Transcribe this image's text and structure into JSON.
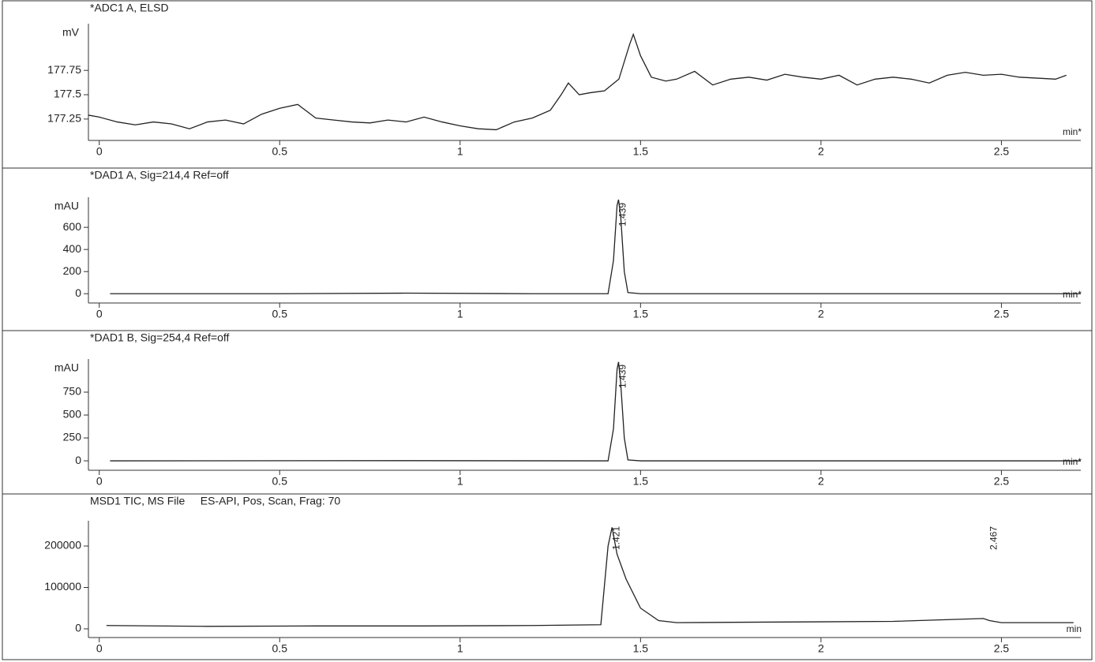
{
  "chart_data": [
    {
      "type": "line",
      "title": "*ADC1 A, ELSD",
      "y_unit": "mV",
      "x_label": "min*",
      "color": "#222222",
      "xlim": [
        -0.03,
        2.72
      ],
      "ylim": [
        177.03,
        178.23
      ],
      "xticks": [
        0,
        0.5,
        1,
        1.5,
        2,
        2.5
      ],
      "yticks": [
        177.25,
        177.5,
        177.75
      ],
      "x": [
        -0.03,
        0,
        0.05,
        0.1,
        0.15,
        0.2,
        0.25,
        0.3,
        0.35,
        0.4,
        0.45,
        0.5,
        0.55,
        0.6,
        0.65,
        0.7,
        0.75,
        0.8,
        0.85,
        0.9,
        0.95,
        1.0,
        1.05,
        1.1,
        1.15,
        1.2,
        1.25,
        1.28,
        1.3,
        1.33,
        1.36,
        1.4,
        1.44,
        1.47,
        1.48,
        1.5,
        1.53,
        1.57,
        1.6,
        1.65,
        1.7,
        1.75,
        1.8,
        1.85,
        1.9,
        1.95,
        2.0,
        2.05,
        2.1,
        2.15,
        2.2,
        2.25,
        2.3,
        2.35,
        2.4,
        2.45,
        2.5,
        2.55,
        2.6,
        2.65,
        2.68
      ],
      "values": [
        177.29,
        177.27,
        177.22,
        177.19,
        177.22,
        177.2,
        177.15,
        177.22,
        177.24,
        177.2,
        177.3,
        177.36,
        177.4,
        177.26,
        177.24,
        177.22,
        177.21,
        177.24,
        177.22,
        177.27,
        177.22,
        177.18,
        177.15,
        177.14,
        177.22,
        177.26,
        177.34,
        177.5,
        177.62,
        177.5,
        177.52,
        177.54,
        177.66,
        178.02,
        178.12,
        177.9,
        177.68,
        177.64,
        177.66,
        177.74,
        177.6,
        177.66,
        177.68,
        177.65,
        177.71,
        177.68,
        177.66,
        177.7,
        177.6,
        177.66,
        177.68,
        177.66,
        177.62,
        177.7,
        177.73,
        177.7,
        177.71,
        177.68,
        177.67,
        177.66,
        177.7
      ]
    },
    {
      "type": "line",
      "title": "*DAD1 A, Sig=214,4 Ref=off",
      "y_unit": "mAU",
      "x_label": "min*",
      "color": "#222222",
      "xlim": [
        -0.03,
        2.72
      ],
      "ylim": [
        -84,
        872
      ],
      "xticks": [
        0,
        0.5,
        1,
        1.5,
        2,
        2.5
      ],
      "yticks": [
        0,
        200,
        400,
        600
      ],
      "x": [
        0.03,
        0.5,
        0.85,
        1.2,
        1.41,
        1.425,
        1.435,
        1.439,
        1.445,
        1.455,
        1.465,
        1.5,
        2.72
      ],
      "values": [
        0,
        0,
        5,
        0,
        0,
        300,
        800,
        850,
        700,
        200,
        10,
        0,
        0
      ],
      "peaks": [
        1.439
      ]
    },
    {
      "type": "line",
      "title": "*DAD1 B, Sig=254,4 Ref=off",
      "y_unit": "mAU",
      "x_label": "min*",
      "color": "#222222",
      "xlim": [
        -0.03,
        2.72
      ],
      "ylim": [
        -103,
        1112
      ],
      "xticks": [
        0,
        0.5,
        1,
        1.5,
        2,
        2.5
      ],
      "yticks": [
        0,
        250,
        500,
        750
      ],
      "x": [
        0.03,
        0.85,
        1.41,
        1.425,
        1.435,
        1.439,
        1.445,
        1.455,
        1.465,
        1.5,
        2.72
      ],
      "values": [
        0,
        2,
        0,
        350,
        1000,
        1080,
        850,
        250,
        10,
        0,
        0
      ],
      "peaks": [
        1.439
      ]
    },
    {
      "type": "line",
      "title": "MSD1 TIC, MS File     ES-API, Pos, Scan, Frag: 70",
      "x_label": "min",
      "color": "#222222",
      "xlim": [
        -0.03,
        2.72
      ],
      "ylim": [
        -21000,
        261000
      ],
      "xticks": [
        0,
        0.5,
        1,
        1.5,
        2,
        2.5
      ],
      "yticks": [
        0,
        100000,
        200000
      ],
      "x": [
        0.02,
        0.3,
        0.6,
        0.9,
        1.2,
        1.39,
        1.41,
        1.421,
        1.435,
        1.46,
        1.5,
        1.55,
        1.6,
        1.8,
        2.0,
        2.2,
        2.45,
        2.467,
        2.5,
        2.7
      ],
      "values": [
        8000,
        6000,
        7000,
        7000,
        8000,
        10000,
        200000,
        245000,
        180000,
        120000,
        50000,
        20000,
        15000,
        16000,
        17000,
        18000,
        25000,
        20000,
        15000,
        15000
      ],
      "peaks": [
        1.421,
        2.467
      ]
    }
  ]
}
